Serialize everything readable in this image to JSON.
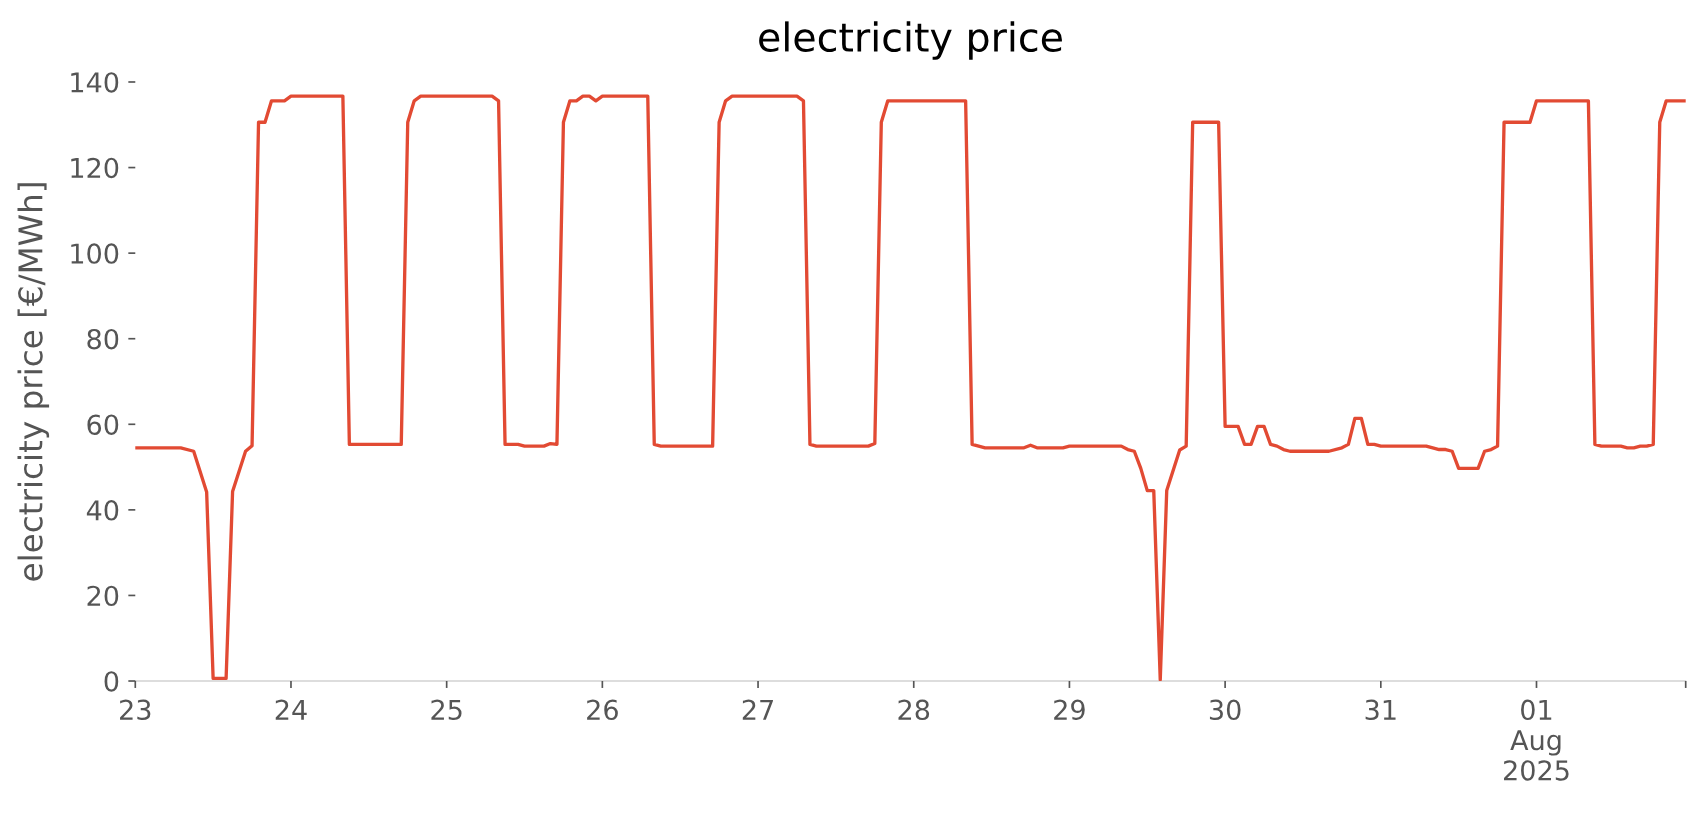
{
  "chart_data": {
    "type": "line",
    "title": "electricity price",
    "ylabel": "electricity price [€/MWh]",
    "color": "#e24a33",
    "x": [
      "2025-07-23T00:00",
      "2025-07-23T07:00",
      "2025-07-23T09:00",
      "2025-07-23T11:00",
      "2025-07-23T12:00",
      "2025-07-23T14:00",
      "2025-07-23T15:00",
      "2025-07-23T17:00",
      "2025-07-23T18:00",
      "2025-07-23T19:00",
      "2025-07-23T20:00",
      "2025-07-23T21:00",
      "2025-07-23T23:00",
      "2025-07-24T00:00",
      "2025-07-24T08:00",
      "2025-07-24T09:00",
      "2025-07-24T17:00",
      "2025-07-24T18:00",
      "2025-07-24T19:00",
      "2025-07-24T20:00",
      "2025-07-25T07:00",
      "2025-07-25T08:00",
      "2025-07-25T09:00",
      "2025-07-25T11:00",
      "2025-07-25T12:00",
      "2025-07-25T15:00",
      "2025-07-25T16:00",
      "2025-07-25T17:00",
      "2025-07-25T18:00",
      "2025-07-25T19:00",
      "2025-07-25T20:00",
      "2025-07-25T21:00",
      "2025-07-25T22:00",
      "2025-07-25T23:00",
      "2025-07-26T00:00",
      "2025-07-26T07:00",
      "2025-07-26T08:00",
      "2025-07-26T09:00",
      "2025-07-26T17:00",
      "2025-07-26T18:00",
      "2025-07-26T19:00",
      "2025-07-26T20:00",
      "2025-07-27T06:00",
      "2025-07-27T07:00",
      "2025-07-27T08:00",
      "2025-07-27T09:00",
      "2025-07-27T17:00",
      "2025-07-27T18:00",
      "2025-07-27T19:00",
      "2025-07-27T20:00",
      "2025-07-28T08:00",
      "2025-07-28T09:00",
      "2025-07-28T11:00",
      "2025-07-28T17:00",
      "2025-07-28T18:00",
      "2025-07-28T19:00",
      "2025-07-28T23:00",
      "2025-07-29T00:00",
      "2025-07-29T08:00",
      "2025-07-29T09:00",
      "2025-07-29T10:00",
      "2025-07-29T11:00",
      "2025-07-29T12:00",
      "2025-07-29T13:00",
      "2025-07-29T14:00",
      "2025-07-29T15:00",
      "2025-07-29T17:00",
      "2025-07-29T18:00",
      "2025-07-29T19:00",
      "2025-07-29T23:00",
      "2025-07-30T00:00",
      "2025-07-30T02:00",
      "2025-07-30T03:00",
      "2025-07-30T04:00",
      "2025-07-30T05:00",
      "2025-07-30T06:00",
      "2025-07-30T07:00",
      "2025-07-30T08:00",
      "2025-07-30T09:00",
      "2025-07-30T10:00",
      "2025-07-30T16:00",
      "2025-07-30T18:00",
      "2025-07-30T19:00",
      "2025-07-30T20:00",
      "2025-07-30T21:00",
      "2025-07-30T22:00",
      "2025-07-30T23:00",
      "2025-07-31T00:00",
      "2025-07-31T07:00",
      "2025-07-31T08:00",
      "2025-07-31T09:00",
      "2025-07-31T10:00",
      "2025-07-31T11:00",
      "2025-07-31T12:00",
      "2025-07-31T15:00",
      "2025-07-31T16:00",
      "2025-07-31T17:00",
      "2025-07-31T18:00",
      "2025-07-31T19:00",
      "2025-07-31T23:00",
      "2025-08-01T00:00",
      "2025-08-01T08:00",
      "2025-08-01T09:00",
      "2025-08-01T10:00",
      "2025-08-01T13:00",
      "2025-08-01T14:00",
      "2025-08-01T15:00",
      "2025-08-01T16:00",
      "2025-08-01T17:00",
      "2025-08-01T18:00",
      "2025-08-01T19:00",
      "2025-08-01T20:00",
      "2025-08-01T23:00"
    ],
    "values": [
      54.5,
      54.5,
      53.7,
      44.2,
      0.6,
      0.6,
      44.3,
      53.7,
      55.0,
      130.6,
      130.6,
      135.6,
      135.6,
      136.7,
      136.7,
      55.3,
      55.3,
      130.6,
      135.6,
      136.7,
      136.7,
      135.6,
      55.3,
      55.3,
      54.9,
      54.9,
      55.5,
      55.3,
      130.6,
      135.6,
      135.6,
      136.7,
      136.7,
      135.6,
      136.7,
      136.7,
      55.3,
      54.9,
      54.9,
      130.6,
      135.6,
      136.7,
      136.7,
      135.6,
      55.3,
      54.9,
      54.9,
      55.5,
      130.6,
      135.6,
      135.6,
      55.3,
      54.5,
      54.5,
      55.1,
      54.5,
      54.5,
      54.9,
      54.9,
      54.1,
      53.7,
      49.7,
      44.5,
      44.5,
      0.3,
      44.5,
      54.0,
      54.9,
      130.6,
      130.6,
      59.5,
      59.5,
      55.3,
      55.3,
      59.5,
      59.5,
      55.3,
      54.9,
      54.1,
      53.7,
      53.7,
      54.5,
      55.3,
      61.4,
      61.4,
      55.3,
      55.3,
      54.9,
      54.9,
      54.5,
      54.1,
      54.1,
      53.7,
      49.7,
      49.7,
      53.7,
      54.1,
      54.9,
      130.6,
      130.6,
      135.6,
      135.6,
      55.3,
      54.9,
      54.9,
      54.5,
      54.5,
      54.9,
      54.9,
      55.3,
      130.6,
      135.6,
      135.6
    ],
    "xlim": [
      "2025-07-23T00:00",
      "2025-08-01T23:00"
    ],
    "xticks": [
      {
        "value": "2025-07-23",
        "label": "23"
      },
      {
        "value": "2025-07-24",
        "label": "24"
      },
      {
        "value": "2025-07-25",
        "label": "25"
      },
      {
        "value": "2025-07-26",
        "label": "26"
      },
      {
        "value": "2025-07-27",
        "label": "27"
      },
      {
        "value": "2025-07-28",
        "label": "28"
      },
      {
        "value": "2025-07-29",
        "label": "29"
      },
      {
        "value": "2025-07-30",
        "label": "30"
      },
      {
        "value": "2025-07-31",
        "label": "31"
      },
      {
        "value": "2025-08-01",
        "label": "01\nAug\n2025"
      },
      {
        "value": "2025-08-01T23:00",
        "label": null
      }
    ],
    "ylim": [
      0,
      140
    ],
    "yticks": [
      0,
      20,
      40,
      60,
      80,
      100,
      120,
      140
    ],
    "grid": false
  }
}
